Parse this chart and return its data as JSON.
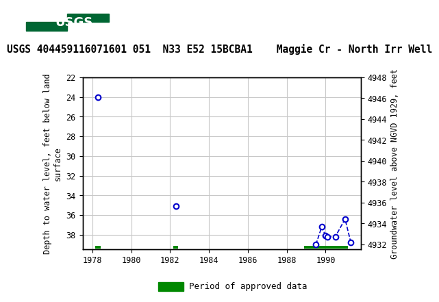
{
  "title": "USGS 404459116071601 051  N33 E52 15BCBA1    Maggie Cr - North Irr Well",
  "ylabel_left": "Depth to water level, feet below land\nsurface",
  "ylabel_right": "Groundwater level above NGVD 1929, feet",
  "ylim_left_top": 22,
  "ylim_left_bottom": 39.5,
  "ylim_right_top": 4948,
  "ylim_right_bottom": 4931.5,
  "xlim": [
    1977.5,
    1991.8
  ],
  "xticks": [
    1978,
    1980,
    1982,
    1984,
    1986,
    1988,
    1990
  ],
  "yticks_left": [
    22,
    24,
    26,
    28,
    30,
    32,
    34,
    36,
    38
  ],
  "yticks_right": [
    4948,
    4946,
    4944,
    4942,
    4940,
    4938,
    4936,
    4934,
    4932
  ],
  "data_points_x": [
    1978.3,
    1982.3,
    1989.5,
    1989.8,
    1990.0,
    1990.1,
    1990.5,
    1991.0,
    1991.3
  ],
  "data_points_y": [
    24.0,
    35.1,
    39.0,
    37.2,
    38.1,
    38.2,
    38.2,
    36.4,
    38.8
  ],
  "connected_segment_x": [
    1989.5,
    1989.8,
    1990.0,
    1990.1,
    1990.5,
    1991.0,
    1991.3
  ],
  "connected_segment_y": [
    39.0,
    37.2,
    38.1,
    38.2,
    38.2,
    36.4,
    38.8
  ],
  "period_bars": [
    {
      "x_start": 1978.15,
      "x_end": 1978.42,
      "y_center": 39.25,
      "height": 0.28
    },
    {
      "x_start": 1982.15,
      "x_end": 1982.42,
      "y_center": 39.25,
      "height": 0.28
    },
    {
      "x_start": 1988.9,
      "x_end": 1991.15,
      "y_center": 39.25,
      "height": 0.28
    }
  ],
  "marker_color": "#0000cc",
  "marker_face": "#ffffff",
  "line_color": "#0000cc",
  "period_color": "#008800",
  "background_color": "#ffffff",
  "header_color": "#006633",
  "grid_color": "#c8c8c8",
  "title_fontsize": 10.5,
  "axis_fontsize": 8.5,
  "tick_fontsize": 8.5,
  "header_text": "█USGS",
  "legend_text": "Period of approved data"
}
